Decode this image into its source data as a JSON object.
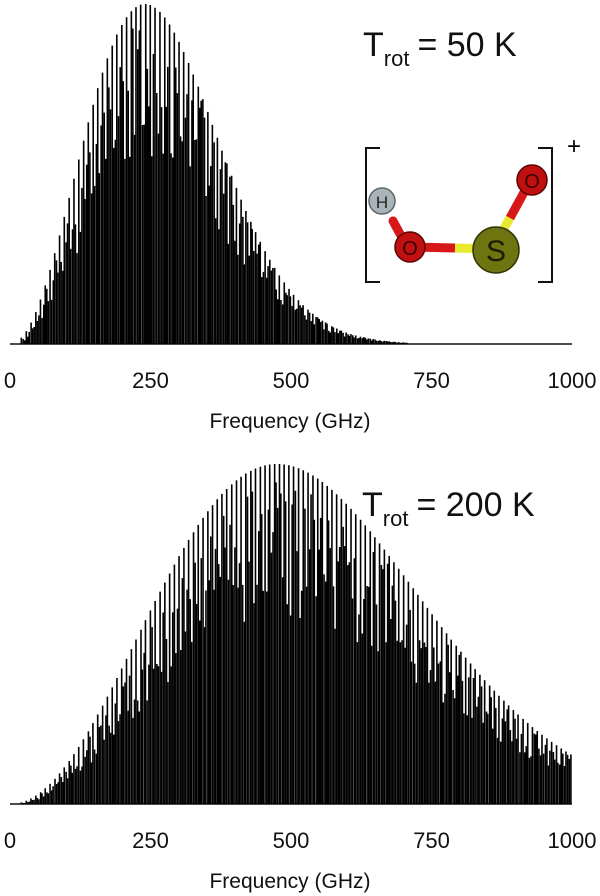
{
  "chart_data": [
    {
      "type": "bar",
      "title": "T_rot = 50 K",
      "annotation": {
        "symbol": "T",
        "subscript": "rot",
        "value_text": "= 50 K"
      },
      "xlabel": "Frequency (GHz)",
      "ylabel": "",
      "xlim": [
        0,
        1000
      ],
      "ylim": [
        0,
        1
      ],
      "x_ticks": [
        0,
        250,
        500,
        750,
        1000
      ],
      "rotational_temperature_K": 50,
      "envelope": {
        "peak_ghz": 240,
        "peak_value": 1.0
      },
      "line_spacing_ghz": 8.5,
      "grid": false
    },
    {
      "type": "bar",
      "title": "T_rot = 200 K",
      "annotation": {
        "symbol": "T",
        "subscript": "rot",
        "value_text": "= 200 K"
      },
      "xlabel": "Frequency (GHz)",
      "ylabel": "",
      "xlim": [
        0,
        1000
      ],
      "ylim": [
        0,
        1
      ],
      "x_ticks": [
        0,
        250,
        500,
        750,
        1000
      ],
      "rotational_temperature_K": 200,
      "envelope": {
        "peak_ghz": 475,
        "peak_value": 1.0
      },
      "line_spacing_ghz": 8.5,
      "grid": false
    }
  ],
  "molecule": {
    "charge": "+",
    "atoms": [
      {
        "label": "H",
        "color": "#aab4b8"
      },
      {
        "label": "O",
        "color": "#c01010"
      },
      {
        "label": "S",
        "color": "#6e7410"
      },
      {
        "label": "O",
        "color": "#c01010"
      }
    ],
    "bond_colors": {
      "oxygen": "#d81818",
      "sulfur": "#e8ea30",
      "hydrogen": "#ffffff"
    }
  }
}
